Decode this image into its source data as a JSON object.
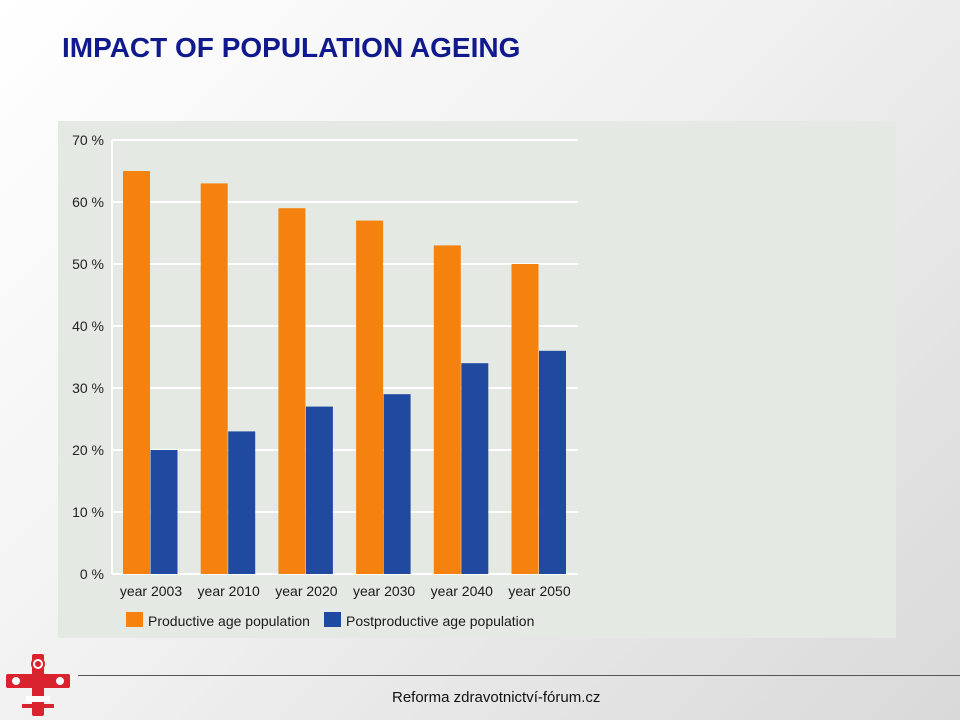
{
  "title": "IMPACT OF POPULATION AGEING",
  "footer": "Reforma zdravotnictví-fórum.cz",
  "chart_data": {
    "type": "bar",
    "categories": [
      "year 2003",
      "year 2010",
      "year 2020",
      "year 2030",
      "year 2040",
      "year 2050"
    ],
    "series": [
      {
        "name": "Productive age population",
        "values": [
          65,
          63,
          59,
          57,
          53,
          50
        ],
        "color": "#f5820f"
      },
      {
        "name": "Postproductive age population",
        "values": [
          20,
          23,
          27,
          29,
          34,
          36
        ],
        "color": "#1f4aa0"
      }
    ],
    "yticks": [
      "0 %",
      "10 %",
      "20 %",
      "30 %",
      "40 %",
      "50 %",
      "60 %",
      "70 %"
    ],
    "ylim": [
      0,
      70
    ],
    "ylabel": "",
    "xlabel": "",
    "grid": true,
    "legend_position": "bottom-left"
  },
  "logo": {
    "icon": "red-cross-emblem-icon",
    "color": "#d9232e"
  }
}
